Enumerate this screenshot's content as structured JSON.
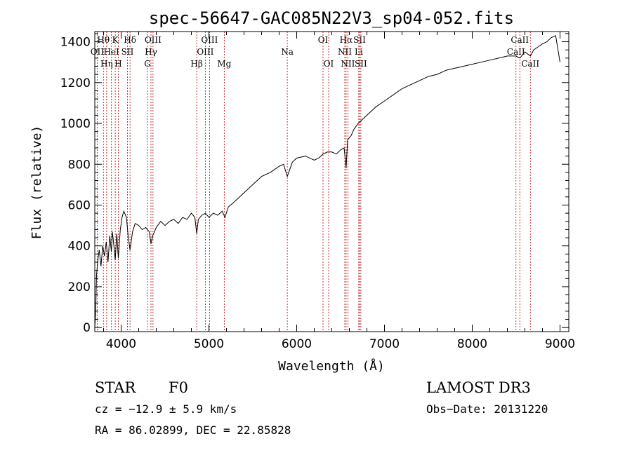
{
  "chart_data": {
    "type": "line",
    "title": "spec-56647-GAC085N22V3_sp04-052.fits",
    "xlabel": "Wavelength (Å)",
    "ylabel": "Flux (relative)",
    "xlim": [
      3700,
      9100
    ],
    "ylim": [
      -20,
      1450
    ],
    "xticks": [
      4000,
      5000,
      6000,
      7000,
      8000,
      9000
    ],
    "yticks": [
      0,
      200,
      400,
      600,
      800,
      1000,
      1200,
      1400
    ],
    "series": [
      {
        "name": "flux",
        "x": [
          3700,
          3710,
          3720,
          3735,
          3750,
          3770,
          3790,
          3810,
          3830,
          3850,
          3870,
          3889,
          3900,
          3920,
          3933,
          3950,
          3968,
          3990,
          4010,
          4030,
          4060,
          4080,
          4101,
          4130,
          4160,
          4200,
          4240,
          4280,
          4320,
          4340,
          4360,
          4400,
          4450,
          4500,
          4550,
          4600,
          4650,
          4700,
          4750,
          4800,
          4840,
          4861,
          4880,
          4920,
          4960,
          5000,
          5050,
          5100,
          5150,
          5183,
          5220,
          5300,
          5400,
          5500,
          5600,
          5700,
          5800,
          5850,
          5893,
          5950,
          6000,
          6100,
          6200,
          6250,
          6300,
          6350,
          6400,
          6450,
          6500,
          6540,
          6563,
          6580,
          6620,
          6650,
          6700,
          6800,
          6900,
          7000,
          7100,
          7200,
          7300,
          7400,
          7500,
          7600,
          7700,
          7800,
          7900,
          8000,
          8100,
          8200,
          8300,
          8400,
          8498,
          8542,
          8600,
          8662,
          8700,
          8800,
          8850,
          8900,
          8950,
          9000
        ],
        "y": [
          0,
          80,
          260,
          330,
          380,
          300,
          400,
          350,
          420,
          320,
          450,
          370,
          470,
          390,
          330,
          460,
          340,
          480,
          540,
          570,
          540,
          450,
          380,
          470,
          510,
          500,
          480,
          490,
          470,
          410,
          450,
          490,
          520,
          500,
          520,
          530,
          510,
          540,
          530,
          560,
          540,
          460,
          530,
          550,
          560,
          540,
          560,
          550,
          570,
          540,
          590,
          620,
          660,
          700,
          740,
          760,
          790,
          800,
          740,
          810,
          830,
          840,
          820,
          830,
          850,
          860,
          860,
          850,
          870,
          880,
          780,
          920,
          940,
          970,
          1000,
          1040,
          1080,
          1110,
          1140,
          1170,
          1190,
          1210,
          1230,
          1240,
          1260,
          1270,
          1280,
          1290,
          1300,
          1310,
          1320,
          1330,
          1330,
          1320,
          1350,
          1330,
          1360,
          1390,
          1400,
          1420,
          1430,
          1300
        ]
      }
    ],
    "spectral_lines": [
      {
        "wavelength": 3727,
        "label": "OII",
        "row": 1
      },
      {
        "wavelength": 3798,
        "label": "Hθ",
        "row": 0
      },
      {
        "wavelength": 3835,
        "label": "Hη",
        "row": 2
      },
      {
        "wavelength": 3889,
        "label": "HeI",
        "row": 1
      },
      {
        "wavelength": 3933,
        "label": "K",
        "row": 0
      },
      {
        "wavelength": 3968,
        "label": "H",
        "row": 2
      },
      {
        "wavelength": 4072,
        "label": "SII",
        "row": 1
      },
      {
        "wavelength": 4101,
        "label": "Hδ",
        "row": 0
      },
      {
        "wavelength": 4300,
        "label": "G",
        "row": 2
      },
      {
        "wavelength": 4340,
        "label": "Hγ",
        "row": 1
      },
      {
        "wavelength": 4363,
        "label": "OIII",
        "row": 0
      },
      {
        "wavelength": 4861,
        "label": "Hβ",
        "row": 2
      },
      {
        "wavelength": 4959,
        "label": "OIII",
        "row": 1
      },
      {
        "wavelength": 5007,
        "label": "OIII",
        "row": 0
      },
      {
        "wavelength": 5175,
        "label": "Mg",
        "row": 2
      },
      {
        "wavelength": 5893,
        "label": "Na",
        "row": 1
      },
      {
        "wavelength": 6300,
        "label": "OI",
        "row": 0
      },
      {
        "wavelength": 6364,
        "label": "OI",
        "row": 2
      },
      {
        "wavelength": 6548,
        "label": "NII",
        "row": 1
      },
      {
        "wavelength": 6563,
        "label": "Hα",
        "row": 0
      },
      {
        "wavelength": 6583,
        "label": "NII",
        "row": 2
      },
      {
        "wavelength": 6707,
        "label": "Li",
        "row": 1
      },
      {
        "wavelength": 6716,
        "label": "SII",
        "row": 0
      },
      {
        "wavelength": 6731,
        "label": "SII",
        "row": 2
      },
      {
        "wavelength": 8498,
        "label": "CaII",
        "row": 1
      },
      {
        "wavelength": 8542,
        "label": "CaII",
        "row": 0
      },
      {
        "wavelength": 8662,
        "label": "CaII",
        "row": 2
      }
    ]
  },
  "info": {
    "object_class": "STAR",
    "subclass": "F0",
    "survey": "LAMOST DR3",
    "redshift": "cz = −12.9 ± 5.9 km/s",
    "obs_date": "Obs−Date: 20131220",
    "coords": "RA =  86.02899, DEC =  22.85828"
  },
  "colors": {
    "spectrum": "#000000",
    "line_marker": "#c00000",
    "axis": "#000000"
  }
}
